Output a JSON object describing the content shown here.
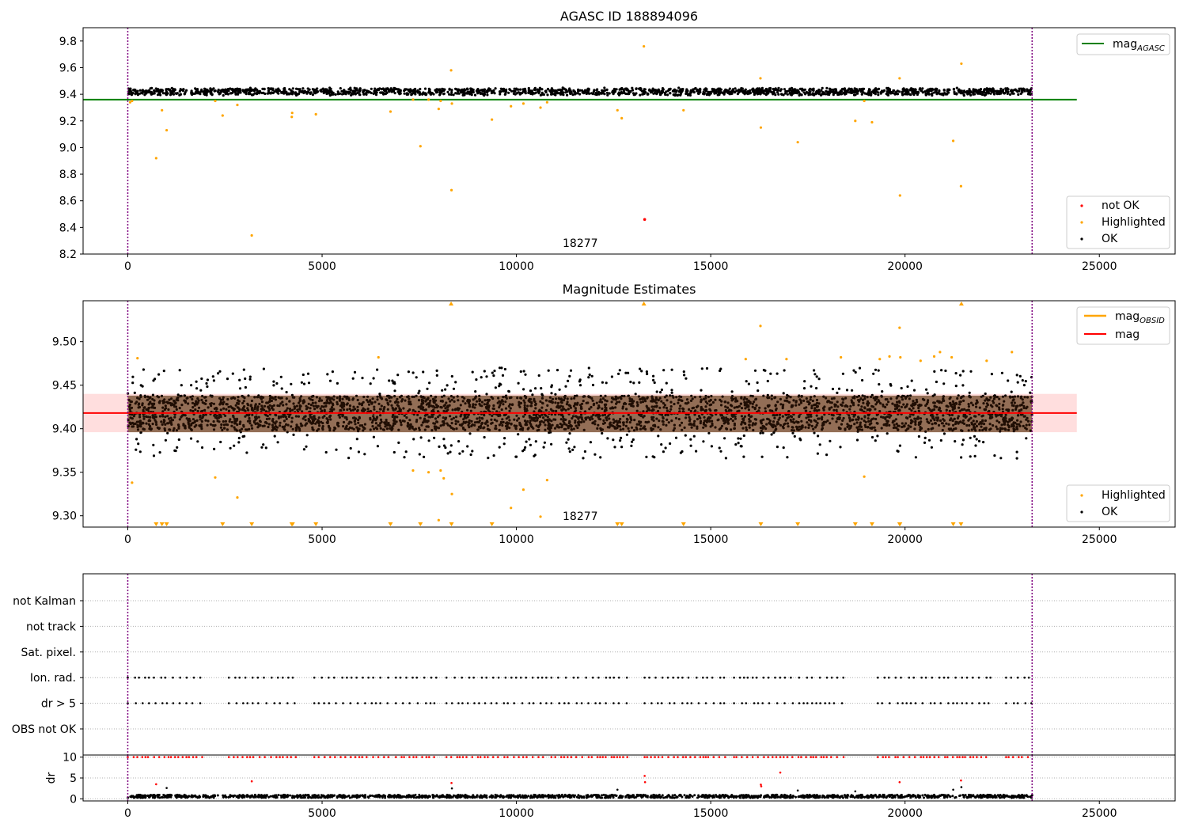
{
  "chart_data": [
    {
      "type": "scatter",
      "title": "AGASC ID 188894096",
      "xlim": [
        -1150,
        26950
      ],
      "ylim": [
        8.2,
        9.9
      ],
      "xticks": [
        0,
        5000,
        10000,
        15000,
        20000,
        25000
      ],
      "yticks": [
        "8.2",
        "8.4",
        "8.6",
        "8.8",
        "9.0",
        "9.2",
        "9.4",
        "9.6",
        "9.8"
      ],
      "vlines": [
        0,
        23270
      ],
      "hline": {
        "name": "mag_AGASC",
        "y": 9.36,
        "x": [
          -1150,
          24420
        ],
        "color": "#008000"
      },
      "ok_band": {
        "center": 9.42,
        "spread": 0.03,
        "x": [
          0,
          23270
        ],
        "color": "#000000"
      },
      "highlighted": {
        "name": "Highlighted",
        "color": "#ffa500",
        "points": [
          [
            60,
            9.34
          ],
          [
            110,
            9.35
          ],
          [
            730,
            8.92
          ],
          [
            880,
            9.28
          ],
          [
            1000,
            9.13
          ],
          [
            2250,
            9.35
          ],
          [
            2440,
            9.24
          ],
          [
            2820,
            9.32
          ],
          [
            3190,
            8.34
          ],
          [
            4220,
            9.23
          ],
          [
            4230,
            9.26
          ],
          [
            4840,
            9.25
          ],
          [
            6760,
            9.27
          ],
          [
            7340,
            9.36
          ],
          [
            7530,
            9.01
          ],
          [
            7740,
            9.36
          ],
          [
            8000,
            9.29
          ],
          [
            8050,
            9.35
          ],
          [
            8320,
            9.58
          ],
          [
            8330,
            8.68
          ],
          [
            8340,
            9.33
          ],
          [
            9370,
            9.21
          ],
          [
            9860,
            9.31
          ],
          [
            10180,
            9.33
          ],
          [
            10620,
            9.3
          ],
          [
            10790,
            9.34
          ],
          [
            12600,
            9.28
          ],
          [
            12710,
            9.22
          ],
          [
            13280,
            9.76
          ],
          [
            14300,
            9.28
          ],
          [
            16280,
            9.52
          ],
          [
            16290,
            9.15
          ],
          [
            17240,
            9.04
          ],
          [
            18720,
            9.2
          ],
          [
            18950,
            9.35
          ],
          [
            19150,
            9.19
          ],
          [
            19860,
            9.52
          ],
          [
            19870,
            8.64
          ],
          [
            21240,
            9.05
          ],
          [
            21440,
            8.71
          ],
          [
            21450,
            9.63
          ]
        ]
      },
      "not_ok": {
        "name": "not OK",
        "color": "#ff0000",
        "points": [
          [
            13300,
            8.46
          ]
        ]
      },
      "legend_upper": [
        "mag_AGASC"
      ],
      "legend_lower": [
        "not OK",
        "Highlighted",
        "OK"
      ],
      "annotation": {
        "text": "18277",
        "x": 11550,
        "y": 8.24
      }
    },
    {
      "type": "scatter",
      "title": "Magnitude Estimates",
      "xlim": [
        -1150,
        26950
      ],
      "ylim": [
        9.287,
        9.547
      ],
      "xticks": [
        0,
        5000,
        10000,
        15000,
        20000,
        25000
      ],
      "yticks": [
        "9.30",
        "9.35",
        "9.40",
        "9.45",
        "9.50"
      ],
      "vlines": [
        0,
        23270
      ],
      "mag_line": {
        "name": "mag",
        "y": 9.418,
        "x": [
          -1150,
          24420
        ],
        "color": "#ff0000"
      },
      "mag_band": {
        "y": [
          9.396,
          9.44
        ],
        "x": [
          -1150,
          24420
        ],
        "color": "#ffb6b6"
      },
      "mag_obsid": {
        "name": "mag_OBSID",
        "y": [
          9.396,
          9.438
        ],
        "x": [
          0,
          23270
        ],
        "color": "#ffa500"
      },
      "ok_band": {
        "center": 9.418,
        "spread": 0.02,
        "x": [
          0,
          23270
        ],
        "color": "#000000"
      },
      "highlighted": {
        "name": "Highlighted",
        "color": "#ffa500",
        "points": [
          [
            110,
            9.338
          ],
          [
            250,
            9.481
          ],
          [
            2250,
            9.344
          ],
          [
            2820,
            9.321
          ],
          [
            6450,
            9.482
          ],
          [
            7340,
            9.352
          ],
          [
            7740,
            9.35
          ],
          [
            8000,
            9.295
          ],
          [
            8050,
            9.352
          ],
          [
            8130,
            9.343
          ],
          [
            8340,
            9.325
          ],
          [
            9860,
            9.309
          ],
          [
            10180,
            9.33
          ],
          [
            10620,
            9.299
          ],
          [
            10790,
            9.341
          ],
          [
            15900,
            9.48
          ],
          [
            16280,
            9.518
          ],
          [
            16950,
            9.48
          ],
          [
            18350,
            9.482
          ],
          [
            18950,
            9.345
          ],
          [
            19350,
            9.48
          ],
          [
            19600,
            9.483
          ],
          [
            19860,
            9.516
          ],
          [
            19880,
            9.482
          ],
          [
            20400,
            9.478
          ],
          [
            20750,
            9.483
          ],
          [
            20900,
            9.488
          ],
          [
            21200,
            9.482
          ],
          [
            22100,
            9.478
          ],
          [
            22750,
            9.488
          ]
        ]
      },
      "clipped_low_x": [
        730,
        880,
        1000,
        2440,
        3190,
        4220,
        4240,
        4840,
        6760,
        7530,
        8330,
        9370,
        12600,
        12710,
        14300,
        16290,
        17240,
        18720,
        19150,
        19860,
        19870,
        21240,
        21440
      ],
      "clipped_high_x": [
        8320,
        13280,
        21450
      ],
      "legend_upper": [
        "mag_OBSID",
        "mag"
      ],
      "legend_lower": [
        "Highlighted",
        "OK"
      ],
      "annotation": {
        "text": "18277",
        "x": 11550,
        "y": 9.29
      }
    },
    {
      "type": "scatter",
      "xlim": [
        -1150,
        26950
      ],
      "vlines": [
        0,
        23270
      ],
      "flag_rows": [
        "not Kalman",
        "not track",
        "Sat. pixel.",
        "Ion. rad.",
        "dr > 5",
        "OBS not OK"
      ],
      "flag_segments": [
        [
          0,
          1950
        ],
        [
          2600,
          4400
        ],
        [
          4800,
          6750
        ],
        [
          6900,
          8000
        ],
        [
          8200,
          10800
        ],
        [
          10900,
          12900
        ],
        [
          13300,
          15500
        ],
        [
          15600,
          18500
        ],
        [
          19300,
          22200
        ],
        [
          22600,
          23270
        ]
      ],
      "flagged_rows": [
        "Ion. rad.",
        "dr > 5"
      ]
    },
    {
      "type": "scatter",
      "ylabel": "dr",
      "xlim": [
        -1150,
        26950
      ],
      "ylim": [
        -0.5,
        10.5
      ],
      "xticks": [
        0,
        5000,
        10000,
        15000,
        20000,
        25000
      ],
      "yticks": [
        "0",
        "5",
        "10"
      ],
      "vlines": [
        0,
        23270
      ],
      "ok_band": {
        "center": 0.6,
        "spread": 0.35,
        "x": [
          0,
          23270
        ],
        "color": "#000000"
      },
      "high_dr": {
        "color": "#ff0000",
        "y": 10,
        "segments": [
          [
            0,
            1950
          ],
          [
            2600,
            4400
          ],
          [
            4800,
            6750
          ],
          [
            6900,
            8000
          ],
          [
            8200,
            10800
          ],
          [
            10900,
            12900
          ],
          [
            13300,
            15500
          ],
          [
            15600,
            18500
          ],
          [
            19300,
            22200
          ],
          [
            22600,
            23270
          ]
        ]
      },
      "outliers": {
        "color": "#ff0000",
        "points": [
          [
            730,
            3.5
          ],
          [
            3190,
            4.2
          ],
          [
            8330,
            3.8
          ],
          [
            13300,
            5.5
          ],
          [
            13310,
            4
          ],
          [
            16290,
            3.4
          ],
          [
            16300,
            3
          ],
          [
            16790,
            6.3
          ],
          [
            19860,
            4
          ],
          [
            21440,
            4.4
          ]
        ]
      },
      "black_outliers": [
        [
          1000,
          2.6
        ],
        [
          8340,
          2.5
        ],
        [
          12600,
          2.2
        ],
        [
          17240,
          2
        ],
        [
          18720,
          1.8
        ],
        [
          21240,
          2.2
        ],
        [
          21450,
          2.8
        ]
      ]
    }
  ]
}
